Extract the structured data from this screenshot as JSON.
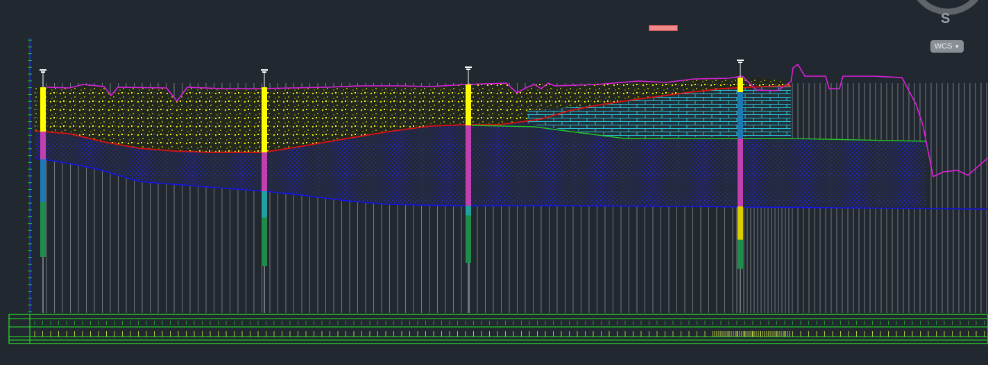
{
  "viewcube": {
    "letter": "S"
  },
  "ucs": {
    "label": "WCS",
    "icon": "chevron-down-icon"
  },
  "colors": {
    "background": "#212830",
    "terrain": "#e020e0",
    "layer_boundary_1": "#dd1111",
    "layer_boundary_2": "#1414ee",
    "layer_boundary_3": "#22cc22",
    "fill_layer": "#ffff00",
    "clay_layer": "#1a1aa0",
    "brick_layer": "#20b0c8",
    "axis": "#22cc22",
    "vertical_axis": "#1a2ad8"
  },
  "boreholes": [
    {
      "id": "bh-1",
      "segments": [
        "#ffff00",
        "#c040b0",
        "#1e78b4",
        "#1e8c4a"
      ]
    },
    {
      "id": "bh-2",
      "segments": [
        "#ffff00",
        "#c040b0",
        "#20a0a0",
        "#1e8c4a"
      ]
    },
    {
      "id": "bh-3",
      "segments": [
        "#ffff00",
        "#c040b0",
        "#20a0a0",
        "#1e8c4a"
      ]
    },
    {
      "id": "bh-4",
      "segments": [
        "#ffff00",
        "#1e78b4",
        "#c040b0",
        "#ddcc00",
        "#1e8c4a"
      ]
    }
  ]
}
